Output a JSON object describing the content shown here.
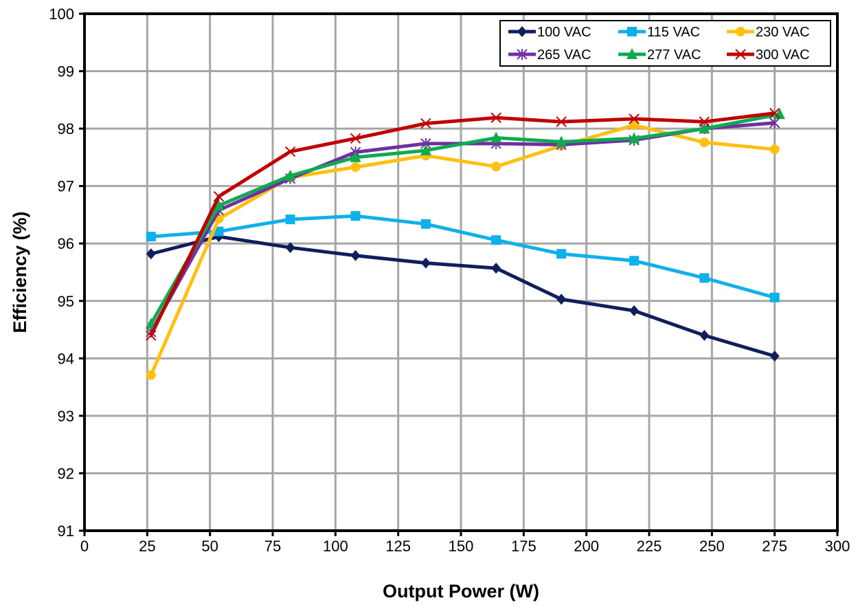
{
  "chart_data": {
    "type": "line",
    "title": "",
    "xlabel": "Output Power (W)",
    "ylabel": "Efficiency (%)",
    "xlim": [
      0,
      300
    ],
    "ylim": [
      91,
      100
    ],
    "xticks": [
      0,
      25,
      50,
      75,
      100,
      125,
      150,
      175,
      200,
      225,
      250,
      275,
      300
    ],
    "yticks": [
      91,
      92,
      93,
      94,
      95,
      96,
      97,
      98,
      99,
      100
    ],
    "grid": true,
    "legend_position": "top-right",
    "series": [
      {
        "name": "100 VAC",
        "color": "#0f1f5c",
        "marker": "diamond",
        "x": [
          26.5,
          53.5,
          82,
          108,
          136,
          164,
          190,
          219,
          247,
          275
        ],
        "y": [
          95.82,
          96.12,
          95.93,
          95.79,
          95.66,
          95.57,
          95.03,
          94.83,
          94.4,
          94.04
        ]
      },
      {
        "name": "115 VAC",
        "color": "#0fb0ea",
        "marker": "square",
        "x": [
          26.5,
          53.5,
          82,
          108,
          136,
          164,
          190,
          219,
          247,
          275
        ],
        "y": [
          96.12,
          96.21,
          96.42,
          96.48,
          96.34,
          96.06,
          95.82,
          95.7,
          95.4,
          95.06
        ]
      },
      {
        "name": "230 VAC",
        "color": "#ffc010",
        "marker": "circle",
        "x": [
          26.5,
          53.5,
          82,
          108,
          136,
          164,
          190,
          219,
          247,
          275
        ],
        "y": [
          93.71,
          96.43,
          97.15,
          97.33,
          97.53,
          97.34,
          97.7,
          98.06,
          97.76,
          97.64
        ]
      },
      {
        "name": "265 VAC",
        "color": "#7030a0",
        "marker": "star",
        "x": [
          26.5,
          53.5,
          82,
          108,
          136,
          164,
          190,
          219,
          247,
          275
        ],
        "y": [
          94.46,
          96.58,
          97.13,
          97.59,
          97.74,
          97.74,
          97.72,
          97.8,
          98.0,
          98.1
        ]
      },
      {
        "name": "277 VAC",
        "color": "#0faa50",
        "marker": "triangle",
        "x": [
          26.5,
          53.5,
          82,
          108,
          136,
          164,
          190,
          219,
          247,
          277
        ],
        "y": [
          94.6,
          96.66,
          97.18,
          97.5,
          97.62,
          97.84,
          97.77,
          97.83,
          98.0,
          98.25
        ]
      },
      {
        "name": "300 VAC",
        "color": "#c00000",
        "marker": "x",
        "x": [
          26.5,
          53.5,
          82,
          108,
          136,
          164,
          190,
          219,
          247,
          275
        ],
        "y": [
          94.4,
          96.82,
          97.6,
          97.83,
          98.09,
          98.19,
          98.12,
          98.17,
          98.12,
          98.27
        ]
      }
    ]
  }
}
